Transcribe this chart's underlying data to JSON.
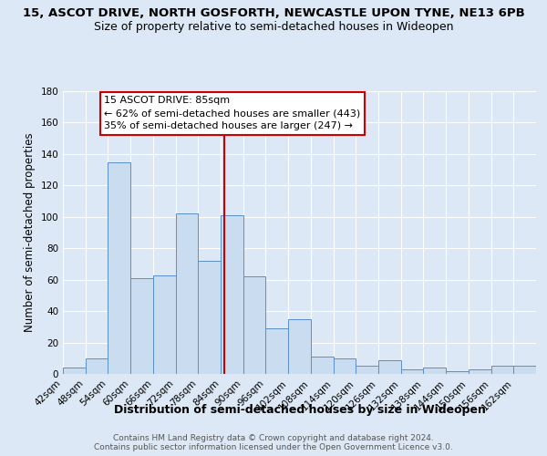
{
  "title": "15, ASCOT DRIVE, NORTH GOSFORTH, NEWCASTLE UPON TYNE, NE13 6PB",
  "subtitle": "Size of property relative to semi-detached houses in Wideopen",
  "xlabel": "Distribution of semi-detached houses by size in Wideopen",
  "ylabel": "Number of semi-detached properties",
  "bin_labels": [
    "42sqm",
    "48sqm",
    "54sqm",
    "60sqm",
    "66sqm",
    "72sqm",
    "78sqm",
    "84sqm",
    "90sqm",
    "96sqm",
    "102sqm",
    "108sqm",
    "114sqm",
    "120sqm",
    "126sqm",
    "132sqm",
    "138sqm",
    "144sqm",
    "150sqm",
    "156sqm",
    "162sqm"
  ],
  "bin_edges": [
    42,
    48,
    54,
    60,
    66,
    72,
    78,
    84,
    90,
    96,
    102,
    108,
    114,
    120,
    126,
    132,
    138,
    144,
    150,
    156,
    162
  ],
  "values": [
    4,
    10,
    135,
    61,
    63,
    102,
    72,
    101,
    62,
    29,
    35,
    11,
    10,
    5,
    9,
    3,
    4,
    2,
    3,
    5,
    5
  ],
  "bar_color": "#c9dcf0",
  "bar_edge_color": "#5b8fc9",
  "reference_value": 85,
  "reference_line_color": "#cc0000",
  "annotation_title": "15 ASCOT DRIVE: 85sqm",
  "annotation_line1": "← 62% of semi-detached houses are smaller (443)",
  "annotation_line2": "35% of semi-detached houses are larger (247) →",
  "annotation_box_edge_color": "#cc0000",
  "annotation_box_face_color": "#ffffff",
  "ylim": [
    0,
    180
  ],
  "yticks": [
    0,
    20,
    40,
    60,
    80,
    100,
    120,
    140,
    160,
    180
  ],
  "background_color": "#dce8f5",
  "plot_background_color": "#dce8f5",
  "footer1": "Contains HM Land Registry data © Crown copyright and database right 2024.",
  "footer2": "Contains public sector information licensed under the Open Government Licence v3.0.",
  "title_fontsize": 9.5,
  "subtitle_fontsize": 9,
  "xlabel_fontsize": 9,
  "ylabel_fontsize": 8.5,
  "tick_fontsize": 7.5,
  "annotation_fontsize": 8,
  "footer_fontsize": 6.5
}
